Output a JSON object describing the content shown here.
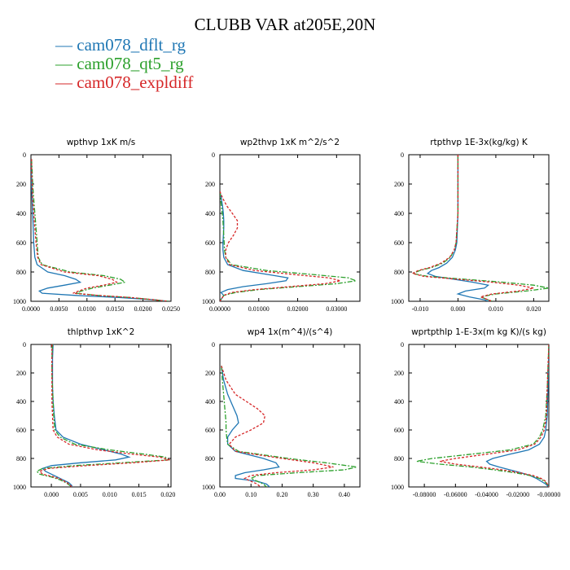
{
  "figure": {
    "title": "CLUBB VAR at205E,20N",
    "legend": [
      {
        "label": "cam078_dflt_rg",
        "color": "#1f77b4"
      },
      {
        "label": "cam078_qt5_rg",
        "color": "#2ca02c"
      },
      {
        "label": "cam078_expldiff",
        "color": "#d62728"
      }
    ]
  },
  "chart_data": [
    {
      "type": "line",
      "title": "wpthvp  1xK m/s",
      "ylim": [
        1000,
        0
      ],
      "xlim": [
        0,
        0.025
      ],
      "yticks": [
        "0",
        "200",
        "400",
        "600",
        "800",
        "1000"
      ],
      "xticks": [
        "0.0000",
        "0.0050",
        "0.0100",
        "0.0150",
        "0.0200",
        "0.0250"
      ],
      "grid": false,
      "y": [
        30,
        100,
        200,
        300,
        400,
        500,
        600,
        700,
        750,
        800,
        825,
        850,
        870,
        890,
        910,
        930,
        945,
        960,
        975,
        990,
        1000
      ],
      "series": [
        {
          "name": "cam078_dflt_rg",
          "values": [
            0.0001,
            0.0001,
            0.0001,
            0.0002,
            0.0003,
            0.0004,
            0.0005,
            0.0007,
            0.0011,
            0.003,
            0.006,
            0.008,
            0.0088,
            0.006,
            0.003,
            0.0015,
            0.002,
            0.008,
            0.016,
            0.022,
            0.0245
          ]
        },
        {
          "name": "cam078_qt5_rg",
          "values": [
            0.0001,
            0.0002,
            0.0003,
            0.0005,
            0.0007,
            0.0009,
            0.0011,
            0.0013,
            0.002,
            0.007,
            0.013,
            0.016,
            0.0168,
            0.014,
            0.011,
            0.009,
            0.008,
            0.012,
            0.018,
            0.022,
            0.0245
          ]
        },
        {
          "name": "cam078_expldiff",
          "values": [
            0.0001,
            0.0001,
            0.0002,
            0.0003,
            0.0005,
            0.0007,
            0.0009,
            0.0012,
            0.0018,
            0.006,
            0.012,
            0.0145,
            0.0153,
            0.013,
            0.01,
            0.0085,
            0.0075,
            0.012,
            0.018,
            0.022,
            0.0245
          ]
        }
      ]
    },
    {
      "type": "line",
      "title": "wp2thvp  1xK m^2/s^2",
      "ylim": [
        1000,
        0
      ],
      "xlim": [
        0,
        0.036
      ],
      "yticks": [
        "0",
        "200",
        "400",
        "600",
        "800",
        "1000"
      ],
      "xticks": [
        "0.00000",
        "0.01000",
        "0.02000",
        "0.03000"
      ],
      "grid": false,
      "y": [
        250,
        300,
        350,
        400,
        450,
        500,
        550,
        600,
        650,
        700,
        750,
        790,
        820,
        840,
        860,
        880,
        900,
        920,
        940,
        960,
        980,
        1000
      ],
      "series": [
        {
          "name": "cam078_dflt_rg",
          "values": [
            0,
            0.0004,
            0.0007,
            0.0009,
            0.001,
            0.001,
            0.0009,
            0.0008,
            0.0008,
            0.001,
            0.002,
            0.006,
            0.013,
            0.0175,
            0.017,
            0.012,
            0.006,
            0.002,
            0.0003,
            0.001,
            0.0005,
            0
          ]
        },
        {
          "name": "cam078_qt5_rg",
          "values": [
            0,
            0.0002,
            0.0004,
            0.0006,
            0.0008,
            0.0009,
            0.001,
            0.0011,
            0.0012,
            0.0015,
            0.003,
            0.012,
            0.025,
            0.033,
            0.035,
            0.03,
            0.02,
            0.01,
            0.004,
            0.001,
            0.0005,
            0
          ]
        },
        {
          "name": "cam078_expldiff",
          "values": [
            0,
            0.0008,
            0.0018,
            0.0032,
            0.0045,
            0.0045,
            0.0035,
            0.0022,
            0.0015,
            0.0015,
            0.0025,
            0.009,
            0.02,
            0.028,
            0.031,
            0.027,
            0.018,
            0.009,
            0.003,
            0.001,
            0.0005,
            0
          ]
        }
      ]
    },
    {
      "type": "line",
      "title": "rtpthvp  1E-3x(kg/kg) K",
      "ylim": [
        1000,
        0
      ],
      "xlim": [
        -0.013,
        0.024
      ],
      "yticks": [
        "0",
        "200",
        "400",
        "600",
        "800",
        "1000"
      ],
      "xticks": [
        "-0.010",
        "0.000",
        "0.010",
        "0.020"
      ],
      "grid": false,
      "y": [
        0,
        200,
        400,
        600,
        650,
        700,
        740,
        770,
        790,
        810,
        830,
        850,
        870,
        890,
        910,
        930,
        950,
        970,
        990,
        1000
      ],
      "series": [
        {
          "name": "cam078_dflt_rg",
          "values": [
            0,
            0,
            0,
            -0.0003,
            -0.0007,
            -0.0015,
            -0.003,
            -0.005,
            -0.007,
            -0.008,
            -0.006,
            -0.001,
            0.004,
            0.008,
            0.007,
            0.002,
            0,
            0.003,
            0.007,
            0.008
          ]
        },
        {
          "name": "cam078_qt5_rg",
          "values": [
            0,
            0,
            0,
            -0.0005,
            -0.001,
            -0.002,
            -0.004,
            -0.007,
            -0.01,
            -0.012,
            -0.008,
            0.002,
            0.012,
            0.02,
            0.024,
            0.018,
            0.01,
            0.006,
            0.008,
            0.009
          ]
        },
        {
          "name": "cam078_expldiff",
          "values": [
            0,
            0,
            0,
            -0.0005,
            -0.001,
            -0.0022,
            -0.0045,
            -0.0075,
            -0.0105,
            -0.012,
            -0.009,
            0.0,
            0.009,
            0.016,
            0.02,
            0.016,
            0.009,
            0.006,
            0.008,
            0.009
          ]
        }
      ]
    },
    {
      "type": "line",
      "title": "thlpthvp  1xK^2",
      "ylim": [
        1000,
        0
      ],
      "xlim": [
        -0.0035,
        0.0205
      ],
      "yticks": [
        "0",
        "200",
        "400",
        "600",
        "800",
        "1000"
      ],
      "xticks": [
        "0.000",
        "0.005",
        "0.010",
        "0.015",
        "0.020"
      ],
      "grid": false,
      "y": [
        0,
        100,
        200,
        300,
        400,
        500,
        600,
        650,
        700,
        740,
        770,
        790,
        810,
        830,
        850,
        870,
        890,
        910,
        930,
        950,
        970,
        990,
        1000
      ],
      "series": [
        {
          "name": "cam078_dflt_rg",
          "values": [
            0.0003,
            0.0002,
            0.0002,
            0.0002,
            0.0003,
            0.0005,
            0.0008,
            0.002,
            0.005,
            0.009,
            0.012,
            0.0133,
            0.011,
            0.005,
            0.0,
            -0.0015,
            -0.001,
            0.0,
            0.001,
            0.002,
            0.003,
            0.0035,
            0.0035
          ]
        },
        {
          "name": "cam078_qt5_rg",
          "values": [
            0.0002,
            0.0001,
            0.0001,
            0.0002,
            0.0003,
            0.0004,
            0.0006,
            0.0015,
            0.004,
            0.01,
            0.016,
            0.0195,
            0.02,
            0.012,
            0.004,
            -0.0015,
            -0.0025,
            -0.002,
            0.0,
            0.0015,
            0.0025,
            0.0032,
            0.0035
          ]
        },
        {
          "name": "cam078_expldiff",
          "values": [
            0.0001,
            0.0001,
            0.0001,
            0.0001,
            0.0001,
            0.0002,
            0.0003,
            0.001,
            0.003,
            0.008,
            0.014,
            0.0185,
            0.0203,
            0.014,
            0.006,
            -0.0005,
            -0.002,
            -0.0015,
            0.0005,
            0.0018,
            0.0027,
            0.0033,
            0.0035
          ]
        }
      ]
    },
    {
      "type": "line",
      "title": "wp4  1x(m^4)/(s^4)",
      "ylim": [
        1000,
        0
      ],
      "xlim": [
        0,
        0.45
      ],
      "yticks": [
        "0",
        "200",
        "400",
        "600",
        "800",
        "1000"
      ],
      "xticks": [
        "0.00",
        "0.10",
        "0.20",
        "0.30",
        "0.40"
      ],
      "grid": false,
      "y": [
        150,
        250,
        350,
        400,
        450,
        500,
        550,
        600,
        650,
        700,
        750,
        800,
        830,
        860,
        880,
        900,
        920,
        940,
        960,
        980,
        1000
      ],
      "series": [
        {
          "name": "cam078_dflt_rg",
          "values": [
            0.005,
            0.012,
            0.025,
            0.035,
            0.045,
            0.055,
            0.06,
            0.04,
            0.025,
            0.025,
            0.05,
            0.14,
            0.18,
            0.19,
            0.14,
            0.08,
            0.05,
            0.05,
            0.12,
            0.15,
            0.16
          ]
        },
        {
          "name": "cam078_qt5_rg",
          "values": [
            0.005,
            0.008,
            0.012,
            0.014,
            0.016,
            0.018,
            0.02,
            0.02,
            0.022,
            0.025,
            0.06,
            0.22,
            0.34,
            0.44,
            0.4,
            0.25,
            0.12,
            0.1,
            0.12,
            0.14,
            0.15
          ]
        },
        {
          "name": "cam078_expldiff",
          "values": [
            0.005,
            0.02,
            0.05,
            0.085,
            0.12,
            0.145,
            0.14,
            0.1,
            0.05,
            0.03,
            0.05,
            0.2,
            0.3,
            0.365,
            0.3,
            0.18,
            0.1,
            0.08,
            0.1,
            0.12,
            0.13
          ]
        }
      ]
    },
    {
      "type": "line",
      "title": "wprtpthlp  1-E-3x(m kg K)/(s kg)",
      "ylim": [
        1000,
        0
      ],
      "xlim": [
        -0.09,
        0
      ],
      "yticks": [
        "0",
        "200",
        "400",
        "600",
        "800",
        "1000"
      ],
      "xticks": [
        "-0.08000",
        "-0.06000",
        "-0.04000",
        "-0.02000",
        "-0.00000"
      ],
      "grid": false,
      "y": [
        0,
        300,
        500,
        600,
        650,
        700,
        740,
        770,
        800,
        820,
        840,
        860,
        880,
        900,
        920,
        940,
        960,
        980,
        1000
      ],
      "series": [
        {
          "name": "cam078_dflt_rg",
          "values": [
            0,
            -0.0005,
            -0.001,
            -0.002,
            -0.003,
            -0.006,
            -0.013,
            -0.025,
            -0.036,
            -0.04,
            -0.038,
            -0.032,
            -0.025,
            -0.018,
            -0.012,
            -0.008,
            -0.005,
            -0.002,
            0
          ]
        },
        {
          "name": "cam078_qt5_rg",
          "values": [
            0,
            -0.001,
            -0.002,
            -0.004,
            -0.006,
            -0.01,
            -0.025,
            -0.05,
            -0.075,
            -0.085,
            -0.07,
            -0.05,
            -0.035,
            -0.022,
            -0.012,
            -0.006,
            -0.003,
            -0.001,
            0
          ]
        },
        {
          "name": "cam078_expldiff",
          "values": [
            0,
            -0.001,
            -0.0015,
            -0.003,
            -0.005,
            -0.009,
            -0.02,
            -0.04,
            -0.06,
            -0.07,
            -0.06,
            -0.044,
            -0.03,
            -0.019,
            -0.01,
            -0.005,
            -0.002,
            -0.001,
            0
          ]
        }
      ]
    }
  ]
}
